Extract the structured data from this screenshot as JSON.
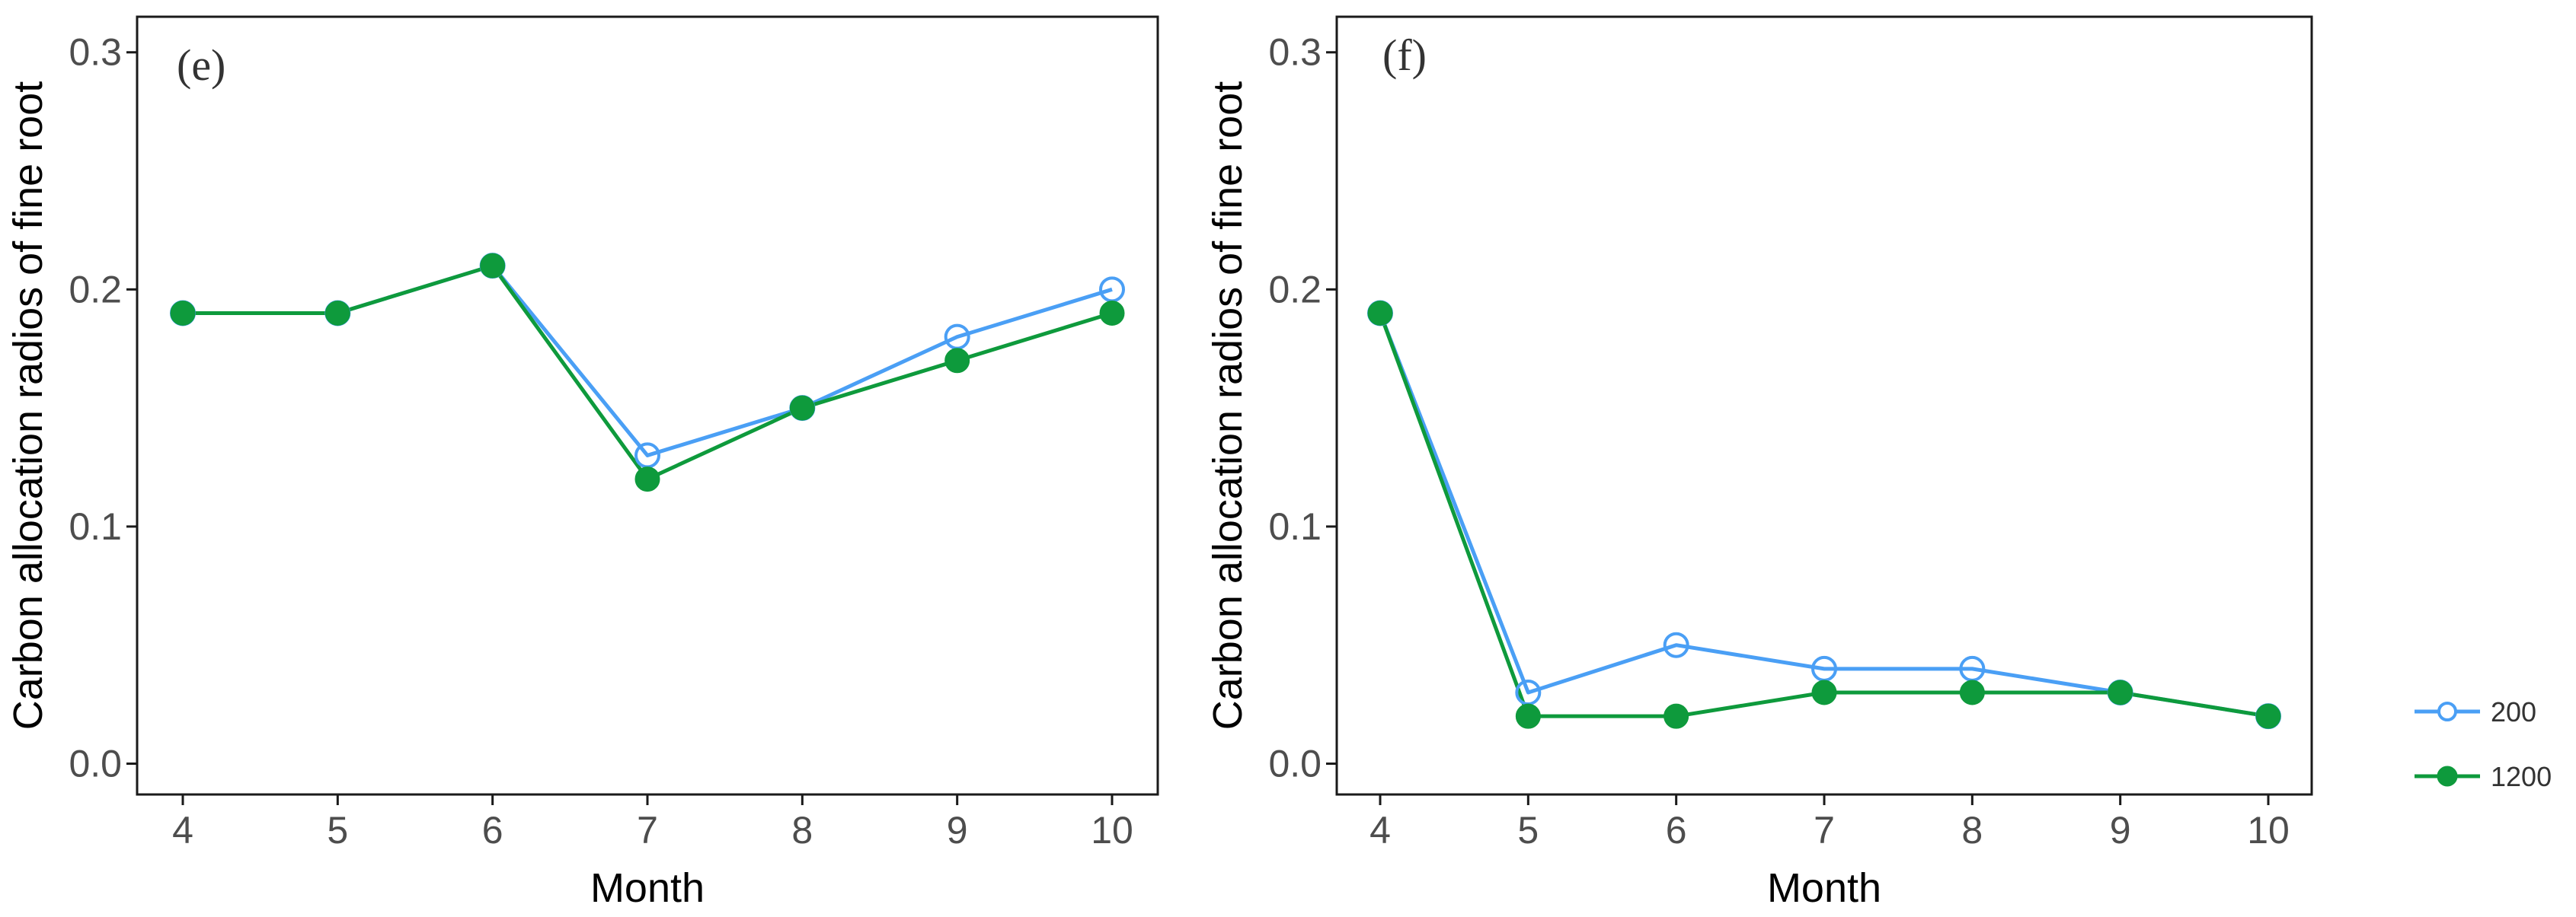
{
  "chart_data": [
    {
      "type": "line",
      "panel_label": "(e)",
      "xlabel": "Month",
      "ylabel": "Carbon allocation radios of fine root",
      "x": [
        4,
        5,
        6,
        7,
        8,
        9,
        10
      ],
      "xticks": [
        "4",
        "5",
        "6",
        "7",
        "8",
        "9",
        "10"
      ],
      "ylim": [
        -0.013,
        0.315
      ],
      "yticks": [
        "0.0",
        "0.1",
        "0.2",
        "0.3"
      ],
      "grid": false,
      "series": [
        {
          "name": "200",
          "values": [
            0.19,
            0.19,
            0.21,
            0.13,
            0.15,
            0.18,
            0.2
          ]
        },
        {
          "name": "1200",
          "values": [
            0.19,
            0.19,
            0.21,
            0.12,
            0.15,
            0.17,
            0.19
          ]
        }
      ]
    },
    {
      "type": "line",
      "panel_label": "(f)",
      "xlabel": "Month",
      "ylabel": "Carbon allocation radios of fine root",
      "x": [
        4,
        5,
        6,
        7,
        8,
        9,
        10
      ],
      "xticks": [
        "4",
        "5",
        "6",
        "7",
        "8",
        "9",
        "10"
      ],
      "ylim": [
        -0.013,
        0.315
      ],
      "yticks": [
        "0.0",
        "0.1",
        "0.2",
        "0.3"
      ],
      "grid": false,
      "series": [
        {
          "name": "200",
          "values": [
            0.19,
            0.03,
            0.05,
            0.04,
            0.04,
            0.03,
            0.02
          ]
        },
        {
          "name": "1200",
          "values": [
            0.19,
            0.02,
            0.02,
            0.03,
            0.03,
            0.03,
            0.02
          ]
        }
      ]
    }
  ],
  "legend": {
    "placement": "right",
    "entries": [
      {
        "label": "200",
        "marker": "open-circle"
      },
      {
        "label": "1200",
        "marker": "filled-circle"
      }
    ]
  },
  "colors": {
    "series_200": "#4a9ff5",
    "series_1200": "#0e9a3c",
    "axis": "#1a1a1a"
  }
}
